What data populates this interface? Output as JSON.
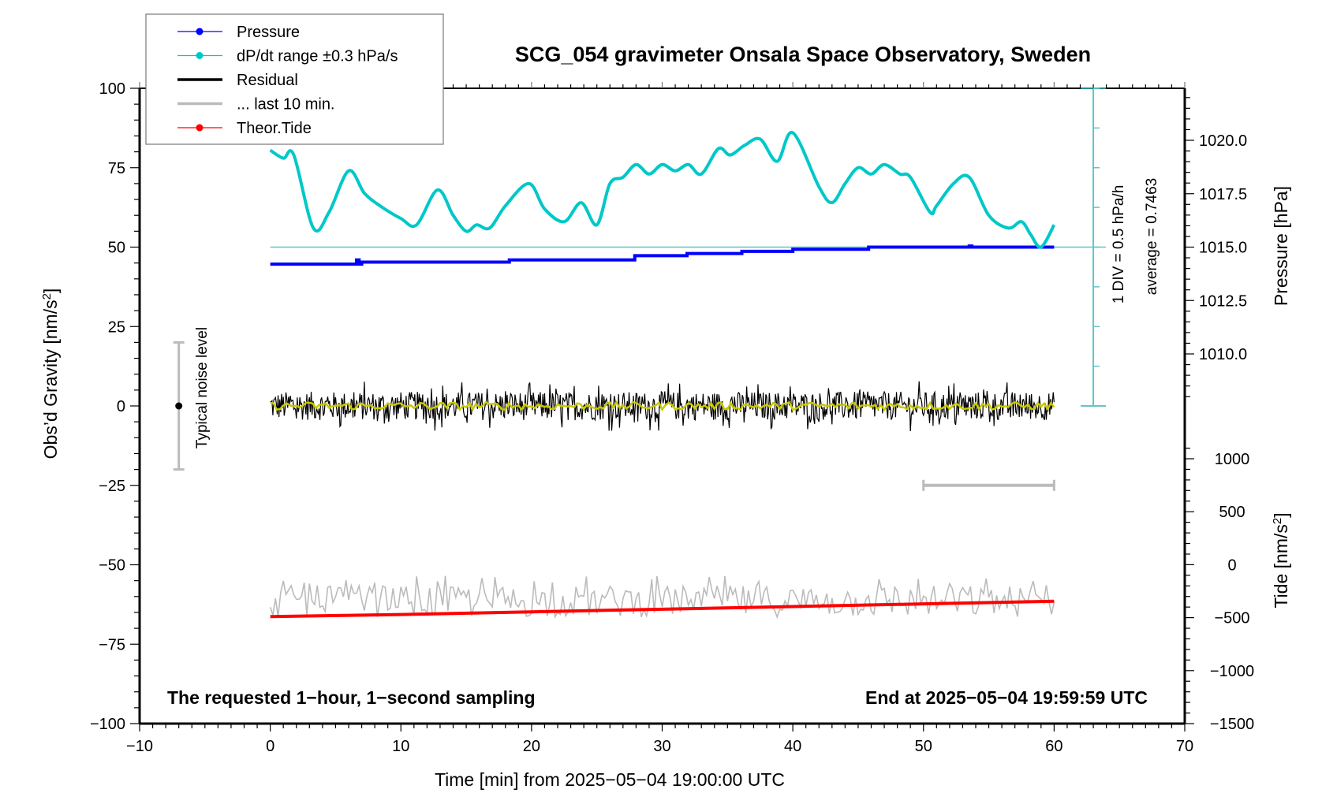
{
  "chart_data": {
    "type": "line",
    "title": "SCG_054 gravimeter Onsala Space Observatory, Sweden",
    "xlabel": "Time [min] from 2025−05−04 19:00:00 UTC",
    "ylabel_left": "Obs'd Gravity [nm/s²]",
    "ylabel_right_pressure": "Pressure [hPa]",
    "ylabel_right_tide": "Tide [nm/s²]",
    "xlim": [
      -10,
      70
    ],
    "ylim_left": [
      -100,
      100
    ],
    "x_ticks": [
      -10,
      0,
      10,
      20,
      30,
      40,
      50,
      60,
      70
    ],
    "x_tick_labels": [
      "−10",
      "0",
      "10",
      "20",
      "30",
      "40",
      "50",
      "60",
      "70"
    ],
    "y_ticks_left": [
      100,
      75,
      50,
      25,
      0,
      -25,
      -50,
      -75,
      -100
    ],
    "y_tick_labels_left": [
      "100",
      "75",
      "50",
      "25",
      "0",
      "−25",
      "−50",
      "−75",
      "−100"
    ],
    "pressure_ticks": [
      1020.0,
      1017.5,
      1015.0,
      1012.5,
      1010.0
    ],
    "pressure_tick_labels": [
      "1020.0",
      "1017.5",
      "1015.0",
      "1012.5",
      "1010.0"
    ],
    "tide_ticks": [
      1000,
      500,
      0,
      -500,
      -1000,
      -1500
    ],
    "tide_tick_labels": [
      "1000",
      "500",
      "0",
      "−500",
      "−1000",
      "−1500"
    ],
    "grid": false,
    "legend_position": "top-left",
    "legend": [
      {
        "label": "Pressure",
        "color": "#0000ff",
        "style": "line-dot"
      },
      {
        "label": "dP/dt range ±0.3 hPa/s",
        "color": "#00c8c8",
        "style": "line-dot"
      },
      {
        "label": "Residual",
        "color": "#000000",
        "style": "line"
      },
      {
        "label": "... last 10 min.",
        "color": "#bbbbbb",
        "style": "line"
      },
      {
        "label": "Theor.Tide",
        "color": "#ff0000",
        "style": "line-dot"
      }
    ],
    "annotations": {
      "left_note": "The requested 1−hour, 1−second sampling",
      "right_note": "End at 2025−05−04 19:59:59 UTC",
      "noise_label": "Typical noise level",
      "noise_range": [
        -20,
        20
      ],
      "dpdt_scale": "1 DIV = 0.5 hPa/h",
      "dpdt_average": "average = 0.7463",
      "last10_bar_range_min": [
        50,
        60
      ]
    },
    "series": [
      {
        "name": "Pressure",
        "axis": "pressure",
        "color": "#0000ff",
        "x": [
          0,
          6.5,
          6.6,
          6.8,
          7.0,
          18.3,
          19.4,
          27.9,
          31.9,
          36.1,
          40.0,
          45.8,
          53.1,
          53.5,
          53.7,
          60
        ],
        "values": [
          1014.2,
          1014.2,
          1014.4,
          1014.2,
          1014.3,
          1014.4,
          1014.4,
          1014.6,
          1014.7,
          1014.8,
          1014.9,
          1015.0,
          1015.0,
          1015.05,
          1015.0,
          1015.0
        ]
      },
      {
        "name": "dP/dt",
        "axis": "left",
        "color": "#00c8c8",
        "x": [
          0,
          1,
          1.8,
          3.3,
          4.5,
          6.0,
          7.2,
          8.4,
          10.0,
          11.2,
          12.8,
          14.0,
          15.0,
          15.8,
          16.8,
          18.0,
          19.8,
          21.0,
          22.5,
          23.8,
          25.0,
          26.0,
          27.0,
          28.0,
          29.0,
          30.0,
          31.0,
          32.0,
          33.0,
          34.3,
          35.2,
          36.3,
          37.5,
          38.8,
          40.0,
          42.0,
          43.0,
          44.0,
          45.0,
          46.0,
          47.0,
          48.2,
          49.0,
          50.5,
          51.0,
          52.3,
          53.5,
          55.0,
          56.5,
          57.5,
          58.2,
          59.0,
          60.0
        ],
        "values": [
          80.5,
          78,
          79,
          56,
          61,
          74,
          67,
          63,
          59,
          57,
          68,
          60,
          55,
          57,
          56,
          63,
          70,
          62,
          58,
          64,
          57,
          70,
          72,
          76,
          73,
          76,
          74,
          76,
          73,
          81,
          79,
          82,
          84,
          77,
          86,
          69,
          64,
          70,
          75,
          73,
          76,
          73,
          72,
          61,
          63,
          70,
          72,
          60,
          56,
          58,
          54,
          50,
          57
        ]
      },
      {
        "name": "Residual",
        "axis": "left",
        "color": "#000000",
        "x_range": [
          0,
          60
        ],
        "approx_band": [
          -8,
          8
        ],
        "mean": 0
      },
      {
        "name": "Residual smoothed",
        "axis": "left",
        "color": "#c8c800",
        "x_range": [
          0,
          60
        ],
        "approx_band": [
          -2,
          2
        ],
        "mean": 0
      },
      {
        "name": "... last 10 min.",
        "axis": "left",
        "color": "#bbbbbb",
        "x_range": [
          0,
          60
        ],
        "mean": -62,
        "approx_band": [
          -68,
          -55
        ]
      },
      {
        "name": "Theor.Tide",
        "axis": "tide",
        "color": "#ff0000",
        "x": [
          0,
          10,
          20,
          30,
          40,
          50,
          60
        ],
        "values": [
          -490,
          -470,
          -445,
          -420,
          -395,
          -370,
          -345
        ]
      }
    ]
  }
}
